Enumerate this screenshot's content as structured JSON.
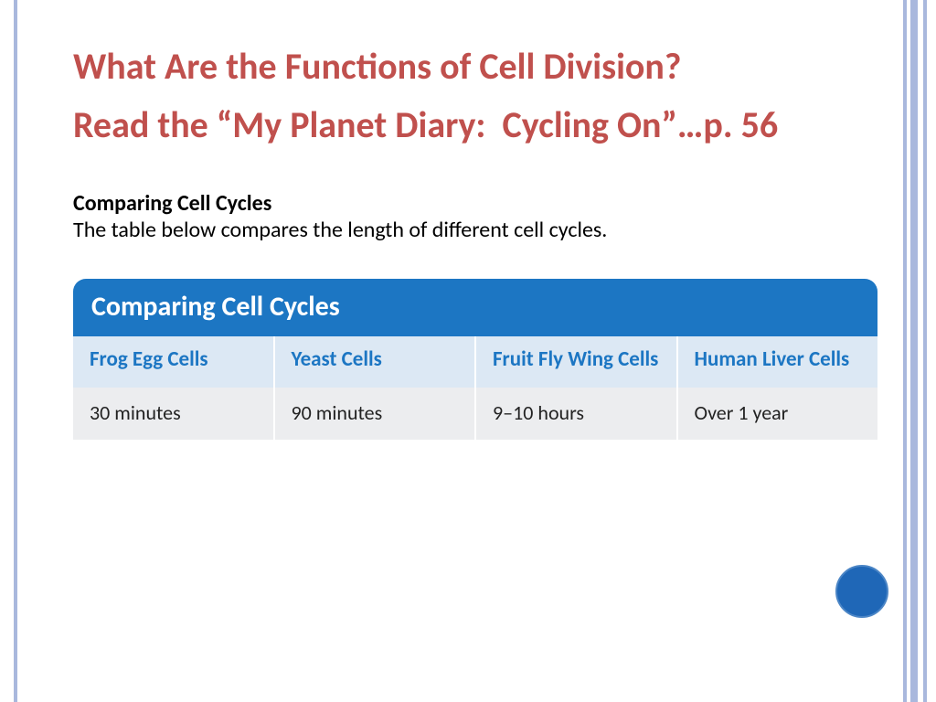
{
  "colors": {
    "border_stripe": "#a9b8dd",
    "heading": "#c0504d",
    "table_title_bg": "#1c76c3",
    "table_header_bg": "#dce8f4",
    "table_header_fg": "#1c76c3",
    "table_data_bg": "#ecedef",
    "table_data_fg": "#222222",
    "circle_fill": "#1f67b7",
    "circle_stroke": "#4c86c6"
  },
  "heading1": "What Are the Functions of Cell Division?",
  "heading2": "Read the “My Planet Diary:  Cycling On”…p. 56",
  "sub_bold": "Comparing Cell Cycles",
  "sub_text": "The table below compares the length of different cell cycles.",
  "table": {
    "title": "Comparing Cell Cycles",
    "columns": [
      "Frog Egg Cells",
      "Yeast Cells",
      "Fruit Fly Wing Cells",
      "Human Liver Cells"
    ],
    "row": [
      "30 minutes",
      "90 minutes",
      "9–10 hours",
      "Over 1 year"
    ]
  }
}
